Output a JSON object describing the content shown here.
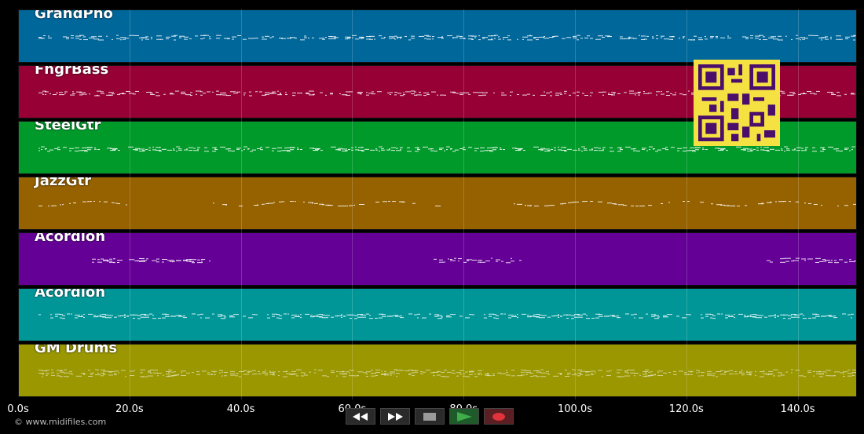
{
  "tracks": [
    {
      "label": "GrandPno",
      "color": "#00679a"
    },
    {
      "label": "FngrBass",
      "color": "#960034"
    },
    {
      "label": "SteelGtr",
      "color": "#009a2a"
    },
    {
      "label": "JazzGtr",
      "color": "#966200"
    },
    {
      "label": "Acordion",
      "color": "#640096"
    },
    {
      "label": "Acordion",
      "color": "#009698"
    },
    {
      "label": "GM Drums",
      "color": "#9a9700"
    }
  ],
  "timeline": {
    "ticks": [
      "0.0s",
      "20.0s",
      "40.0s",
      "60.0s",
      "80.0s",
      "100.0s",
      "120.0s",
      "140.0s"
    ]
  },
  "footer": {
    "copyright": "© www.midifiles.com"
  },
  "controls": {
    "rewind": "rewind-icon",
    "forward": "fast-forward-icon",
    "stop": "stop-icon",
    "play": "play-icon",
    "record": "record-icon"
  },
  "colors": {
    "play": "#3fae4a",
    "record": "#e0333c",
    "stop": "#9a9a9a"
  }
}
